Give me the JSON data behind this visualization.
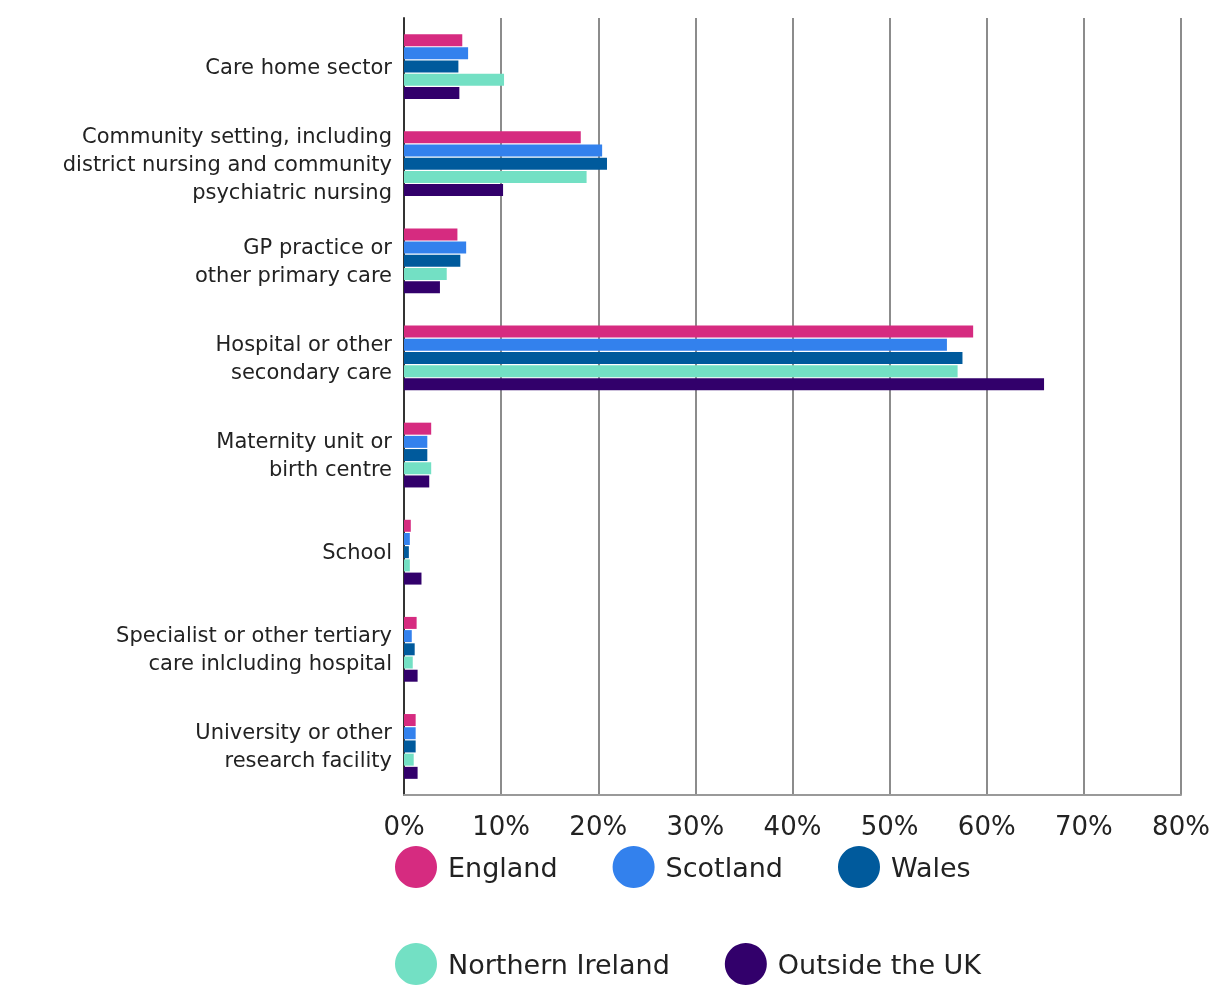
{
  "chart_data": {
    "type": "bar",
    "orientation": "horizontal",
    "categories": [
      "Care home sector",
      "Community setting, including\ndistrict nursing and community\npsychiatric nursing",
      "GP practice or\nother primary care",
      "Hospital or other\nsecondary care",
      "Maternity unit or\nbirth centre",
      "School",
      "Specialist or other tertiary\ncare inlcluding hospital",
      "University or other\nresearch facility"
    ],
    "series": [
      {
        "name": "England",
        "color": "#d62b80",
        "values": [
          6.0,
          18.2,
          5.5,
          58.6,
          2.8,
          0.7,
          1.3,
          1.2
        ]
      },
      {
        "name": "Scotland",
        "color": "#3381ed",
        "values": [
          6.6,
          20.4,
          6.4,
          55.9,
          2.4,
          0.6,
          0.8,
          1.2
        ]
      },
      {
        "name": "Wales",
        "color": "#005a9c",
        "values": [
          5.6,
          20.9,
          5.8,
          57.5,
          2.4,
          0.5,
          1.1,
          1.2
        ]
      },
      {
        "name": "Northern Ireland",
        "color": "#73e0c4",
        "values": [
          10.3,
          18.8,
          4.4,
          57.0,
          2.8,
          0.6,
          0.9,
          1.0
        ]
      },
      {
        "name": "Outside the UK",
        "color": "#32006b",
        "values": [
          5.7,
          10.2,
          3.7,
          65.9,
          2.6,
          1.8,
          1.4,
          1.4
        ]
      }
    ],
    "xlim": [
      0,
      80
    ],
    "xticks": [
      {
        "value": 0,
        "label": "0%"
      },
      {
        "value": 10,
        "label": "10%"
      },
      {
        "value": 20,
        "label": "20%"
      },
      {
        "value": 30,
        "label": "30%"
      },
      {
        "value": 40,
        "label": "40%"
      },
      {
        "value": 50,
        "label": "50%"
      },
      {
        "value": 60,
        "label": "60%"
      },
      {
        "value": 70,
        "label": "70%"
      },
      {
        "value": 80,
        "label": "80%"
      }
    ],
    "grid": "x",
    "legend": "bottom"
  }
}
